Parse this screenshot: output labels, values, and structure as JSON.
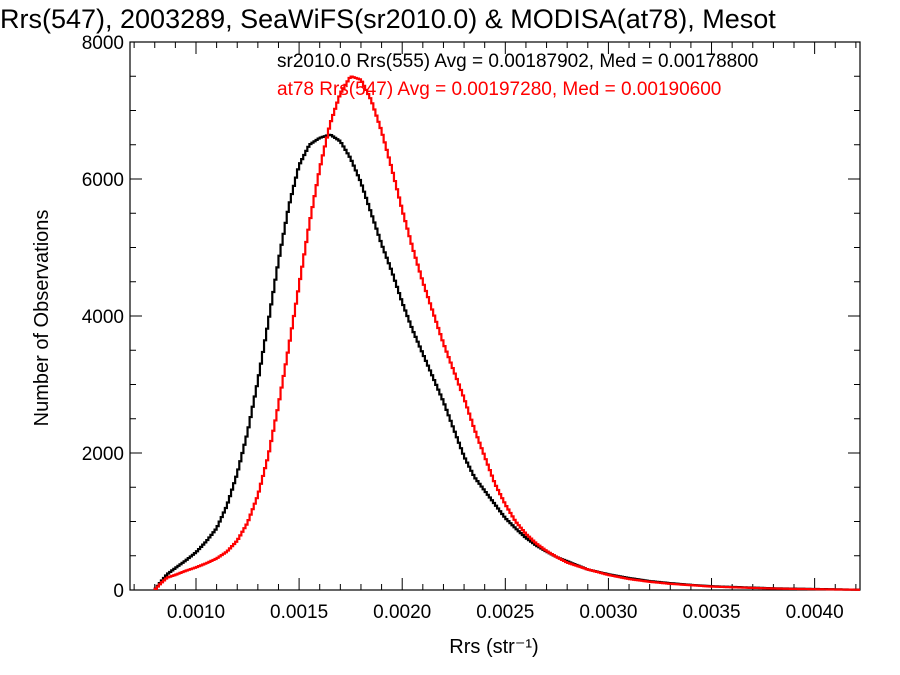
{
  "chart_data": {
    "type": "line",
    "title": "Rrs(547), 2003289, SeaWiFS(sr2010.0) & MODISA(at78), Mesot",
    "xlabel": "Rrs (str⁻¹)",
    "ylabel": "Number of Observations",
    "xlim": [
      0.00068,
      0.00422
    ],
    "ylim": [
      0,
      8000
    ],
    "x_ticks": [
      0.001,
      0.0015,
      0.002,
      0.0025,
      0.003,
      0.0035,
      0.004
    ],
    "x_tick_labels": [
      "0.0010",
      "0.0015",
      "0.0020",
      "0.0025",
      "0.0030",
      "0.0035",
      "0.0040"
    ],
    "y_ticks": [
      0,
      2000,
      4000,
      6000,
      8000
    ],
    "y_tick_labels": [
      "0",
      "2000",
      "4000",
      "6000",
      "8000"
    ],
    "grid": false,
    "legend": [
      {
        "text": "sr2010.0 Rrs(555) Avg = 0.00187902, Med = 0.00178800",
        "color": "#000000"
      },
      {
        "text": "at78 Rrs(547) Avg = 0.00197280, Med = 0.00190600",
        "color": "#ff0000"
      }
    ],
    "series": [
      {
        "color": "#000000",
        "x": [
          0.0008,
          0.00083,
          0.00086,
          0.0009,
          0.00095,
          0.001,
          0.00105,
          0.0011,
          0.00115,
          0.0012,
          0.00125,
          0.0013,
          0.00135,
          0.0014,
          0.00145,
          0.0015,
          0.00155,
          0.0016,
          0.00165,
          0.0017,
          0.00175,
          0.0018,
          0.00185,
          0.0019,
          0.00195,
          0.002,
          0.00205,
          0.0021,
          0.00215,
          0.0022,
          0.00225,
          0.0023,
          0.00235,
          0.0024,
          0.00245,
          0.0025,
          0.00255,
          0.0026,
          0.00265,
          0.0027,
          0.00275,
          0.0028,
          0.0029,
          0.003,
          0.0031,
          0.0032,
          0.0033,
          0.0034,
          0.0035,
          0.0036,
          0.0037,
          0.0038,
          0.0039,
          0.004,
          0.0041,
          0.0042
        ],
        "values": [
          0,
          120,
          230,
          320,
          430,
          550,
          710,
          900,
          1230,
          1700,
          2300,
          3050,
          3900,
          4800,
          5600,
          6200,
          6500,
          6600,
          6650,
          6550,
          6300,
          5950,
          5500,
          5050,
          4650,
          4200,
          3800,
          3450,
          3100,
          2750,
          2350,
          1950,
          1650,
          1450,
          1250,
          1050,
          900,
          760,
          650,
          560,
          480,
          420,
          300,
          230,
          175,
          130,
          100,
          75,
          55,
          45,
          35,
          25,
          20,
          15,
          10,
          5
        ]
      },
      {
        "color": "#ff0000",
        "x": [
          0.0008,
          0.00083,
          0.00086,
          0.0009,
          0.00095,
          0.001,
          0.00105,
          0.0011,
          0.00115,
          0.0012,
          0.00125,
          0.0013,
          0.00135,
          0.0014,
          0.00145,
          0.0015,
          0.00155,
          0.0016,
          0.00165,
          0.0017,
          0.00175,
          0.0018,
          0.00185,
          0.0019,
          0.00195,
          0.002,
          0.00205,
          0.0021,
          0.00215,
          0.0022,
          0.00225,
          0.0023,
          0.00235,
          0.0024,
          0.00245,
          0.0025,
          0.00255,
          0.0026,
          0.00265,
          0.0027,
          0.00275,
          0.0028,
          0.0029,
          0.003,
          0.0031,
          0.0032,
          0.0033,
          0.0034,
          0.0035,
          0.0036,
          0.0037,
          0.0038,
          0.0039,
          0.004,
          0.0041,
          0.0042
        ],
        "values": [
          0,
          100,
          180,
          220,
          280,
          330,
          390,
          460,
          560,
          720,
          980,
          1380,
          1950,
          2700,
          3550,
          4450,
          5350,
          6150,
          6800,
          7250,
          7500,
          7450,
          7150,
          6700,
          6150,
          5550,
          5000,
          4500,
          4050,
          3600,
          3200,
          2800,
          2350,
          1950,
          1550,
          1250,
          1000,
          820,
          680,
          570,
          480,
          400,
          300,
          220,
          160,
          120,
          90,
          70,
          50,
          40,
          30,
          22,
          16,
          12,
          8,
          4
        ]
      }
    ]
  }
}
